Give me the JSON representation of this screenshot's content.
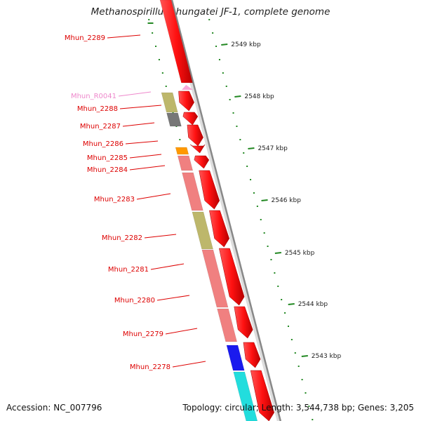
{
  "title": "Methanospirillum hungatei JF-1, complete genome",
  "footer": {
    "accession": "Accession: NC_007796",
    "topology": "Topology: circular; Length: 3,544,738 bp; Genes: 3,205"
  },
  "ticks": [
    {
      "label": "2549 kbp"
    },
    {
      "label": "2548 kbp"
    },
    {
      "label": "2547 kbp"
    },
    {
      "label": "2546 kbp"
    },
    {
      "label": "2545 kbp"
    },
    {
      "label": "2544 kbp"
    },
    {
      "label": "2543 kbp"
    }
  ],
  "genes": [
    {
      "label": "Mhun_2289",
      "color": "#dd0000"
    },
    {
      "label": "Mhun_R0041",
      "color": "#ee88cc"
    },
    {
      "label": "Mhun_2288",
      "color": "#dd0000"
    },
    {
      "label": "Mhun_2287",
      "color": "#dd0000"
    },
    {
      "label": "Mhun_2286",
      "color": "#dd0000"
    },
    {
      "label": "Mhun_2285",
      "color": "#dd0000"
    },
    {
      "label": "Mhun_2284",
      "color": "#dd0000"
    },
    {
      "label": "Mhun_2283",
      "color": "#dd0000"
    },
    {
      "label": "Mhun_2282",
      "color": "#dd0000"
    },
    {
      "label": "Mhun_2281",
      "color": "#dd0000"
    },
    {
      "label": "Mhun_2280",
      "color": "#dd0000"
    },
    {
      "label": "Mhun_2279",
      "color": "#dd0000"
    },
    {
      "label": "Mhun_2278",
      "color": "#dd0000"
    }
  ],
  "colors": {
    "cds_forward": "#ff1111",
    "rrna": "#f8a8d8",
    "cog_khaki": "#bdb76b",
    "cog_gray": "#777777",
    "cog_orange": "#ff9900",
    "cog_salmon": "#f08080",
    "cog_blue": "#1a1aee",
    "cog_cyan": "#22dddd",
    "backbone": "#888888",
    "tick_green": "#228822"
  }
}
